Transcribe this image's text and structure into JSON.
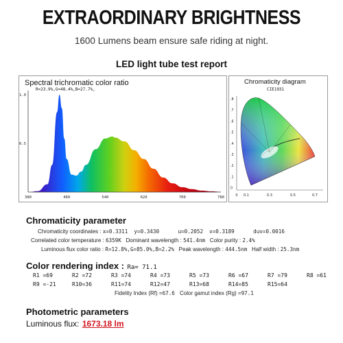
{
  "headline": "EXTRAORDINARY BRIGHTNESS",
  "subline": "1600 Lumens beam ensure safe riding at night.",
  "report_title": "LED light tube test report",
  "spectrum": {
    "title": "Spectral trichromatic color ratio",
    "ratio_text": "R=23.9%,G=48.4%,B=27.7%,",
    "y_ticks": [
      "1.0",
      "0.5"
    ],
    "x_ticks": [
      "380",
      "460",
      "540",
      "620",
      "700",
      "780"
    ]
  },
  "chromaticity_diagram": {
    "title": "Chromaticity diagram",
    "subtitle": "CIE1931",
    "y_ticks": [
      ".8",
      ".7",
      ".6",
      ".5",
      ".4",
      ".3",
      ".2",
      ".1",
      "0"
    ],
    "x_ticks": [
      "0",
      "0.1",
      "0.3",
      "0.5",
      "0.7"
    ]
  },
  "chromaticity_parameter": {
    "title": "Chromaticity parameter",
    "rows": [
      {
        "label": "Chromaticity coordinates :",
        "values": "x=0.3311  y=0.3430      u=0.2052  v=0.3189      duv=0.0016"
      },
      {
        "label": "Correlated color temperature :",
        "value1": "6359K",
        "label2": "Dominant wavelength :",
        "value2": "541.4nm",
        "label3": "Color purity :",
        "value3": "2.4%"
      },
      {
        "label": "Luminous flux color ratio :",
        "value1": "R=12.8%,G=85.0%,B=2.2%",
        "label2": "Peak wavelength :",
        "value2": "444.5nm",
        "label3": "Half width :",
        "value3": "25.3nm"
      }
    ]
  },
  "color_rendering": {
    "title": "Color rendering index :",
    "ra": "Ra= 71.1",
    "row1": [
      "R1 =69",
      "R2 =72",
      "R3 =74",
      "R4 =73",
      "R5 =73",
      "R6 =67",
      "R7 =79",
      "R8 =61"
    ],
    "row2": [
      "R9 =-21",
      "R10=36",
      "R11=74",
      "R12=47",
      "R13=68",
      "R14=85",
      "R15=64"
    ],
    "fidelity_label": "Fidelity Index (Rf) =",
    "fidelity_value": "67.6",
    "gamut_label": "Color gamut index (Rg) =",
    "gamut_value": "97.1"
  },
  "photometric": {
    "title": "Photometric parameters",
    "flux_label": "Luminous flux:",
    "flux_value": "1673.18 lm"
  },
  "colors": {
    "accent_red": "#d0141c",
    "text": "#111111"
  },
  "chart_data": {
    "type": "area",
    "title": "Spectral trichromatic color ratio",
    "xlabel": "",
    "ylabel": "",
    "xlim": [
      380,
      780
    ],
    "ylim": [
      0,
      1.0
    ],
    "x": [
      380,
      400,
      420,
      430,
      440,
      445,
      450,
      455,
      460,
      470,
      480,
      490,
      500,
      520,
      540,
      555,
      560,
      580,
      600,
      620,
      640,
      660,
      680,
      700,
      720,
      740,
      760,
      780
    ],
    "y": [
      0.0,
      0.01,
      0.08,
      0.28,
      0.82,
      1.0,
      0.86,
      0.55,
      0.34,
      0.18,
      0.17,
      0.21,
      0.28,
      0.44,
      0.55,
      0.57,
      0.56,
      0.52,
      0.43,
      0.34,
      0.24,
      0.15,
      0.09,
      0.05,
      0.03,
      0.015,
      0.008,
      0.003
    ]
  }
}
